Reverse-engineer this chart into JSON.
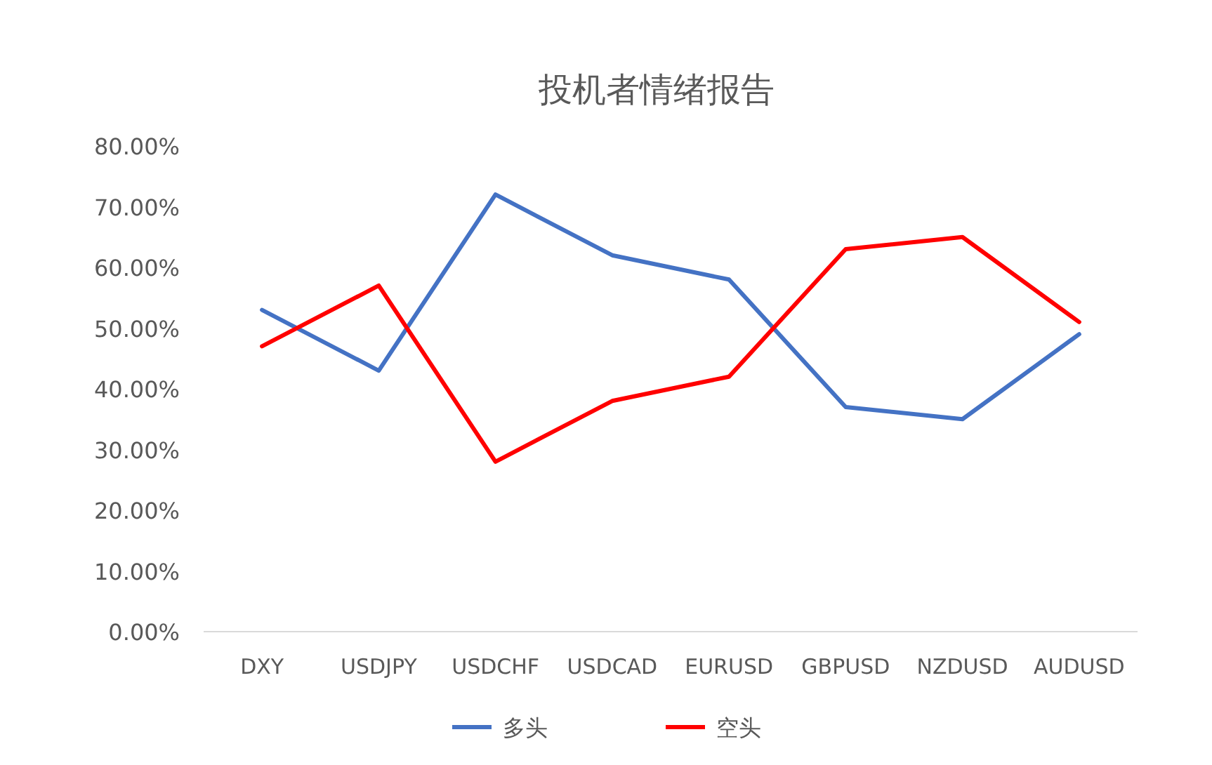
{
  "chart_data": {
    "type": "line",
    "title": "投机者情绪报告",
    "categories": [
      "DXY",
      "USDJPY",
      "USDCHF",
      "USDCAD",
      "EURUSD",
      "GBPUSD",
      "NZDUSD",
      "AUDUSD"
    ],
    "series": [
      {
        "name": "多头",
        "color": "#4472c4",
        "values": [
          53,
          43,
          72,
          62,
          58,
          37,
          35,
          49
        ]
      },
      {
        "name": "空头",
        "color": "#ff0000",
        "values": [
          47,
          57,
          28,
          38,
          42,
          63,
          65,
          51
        ]
      }
    ],
    "ylim": [
      0,
      80
    ],
    "yticks": [
      {
        "value": 0,
        "label": "0.00%"
      },
      {
        "value": 10,
        "label": "10.00%"
      },
      {
        "value": 20,
        "label": "20.00%"
      },
      {
        "value": 30,
        "label": "30.00%"
      },
      {
        "value": 40,
        "label": "40.00%"
      },
      {
        "value": 50,
        "label": "50.00%"
      },
      {
        "value": 60,
        "label": "60.00%"
      },
      {
        "value": 70,
        "label": "70.00%"
      },
      {
        "value": 80,
        "label": "80.00%"
      }
    ],
    "grid": false,
    "legend": "bottom",
    "marker": "none",
    "line_style": "solid"
  }
}
